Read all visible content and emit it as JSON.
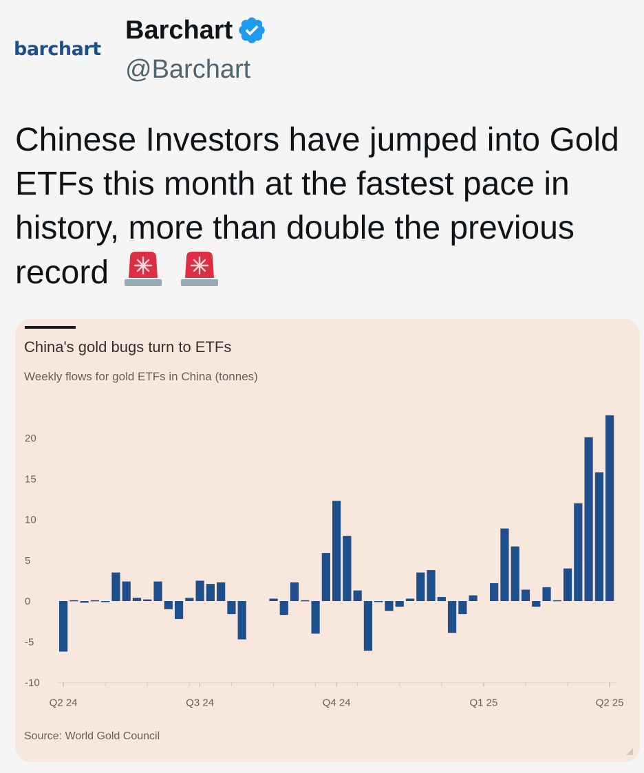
{
  "account": {
    "logo_text": "barchart",
    "display_name": "Barchart",
    "handle": "@Barchart",
    "verified": true,
    "verified_color": "#1d9bf0"
  },
  "tweet": {
    "text": "Chinese Investors have jumped into Gold ETFs this month at the fastest pace in history, more than double the previous record",
    "emojis": [
      "police-car-light-icon",
      "police-car-light-icon"
    ]
  },
  "chart_data": {
    "type": "bar",
    "title": "China's gold bugs turn to ETFs",
    "subtitle": "Weekly flows for gold ETFs in China (tonnes)",
    "source": "Source: World Gold Council",
    "ylim": [
      -10,
      25
    ],
    "yticks": [
      20,
      15,
      10,
      5,
      0,
      -5,
      -10
    ],
    "xtick_labels": [
      {
        "label": "Q2 24",
        "index": 0
      },
      {
        "label": "Q3 24",
        "index": 13
      },
      {
        "label": "Q4 24",
        "index": 26
      },
      {
        "label": "Q1 25",
        "index": 40
      },
      {
        "label": "Q2 25",
        "index": 52
      }
    ],
    "bar_color": "#1f4e8c",
    "background": "#f7e7dc",
    "grid": false,
    "values": [
      -6.2,
      0.1,
      -0.2,
      0.1,
      -0.1,
      3.5,
      2.4,
      0.4,
      0.2,
      2.4,
      -1.0,
      -2.2,
      0.4,
      2.5,
      2.1,
      2.3,
      -1.6,
      -4.7,
      null,
      null,
      0.3,
      -1.7,
      2.3,
      0.1,
      -4.0,
      5.9,
      12.3,
      8.0,
      1.3,
      -6.1,
      -0.1,
      -1.2,
      -0.7,
      0.3,
      3.5,
      3.8,
      0.5,
      -3.9,
      -1.6,
      0.7,
      null,
      2.2,
      8.9,
      6.7,
      1.4,
      -0.7,
      1.7,
      0.1,
      4.0,
      12.0,
      20.1,
      15.8,
      22.8
    ]
  }
}
